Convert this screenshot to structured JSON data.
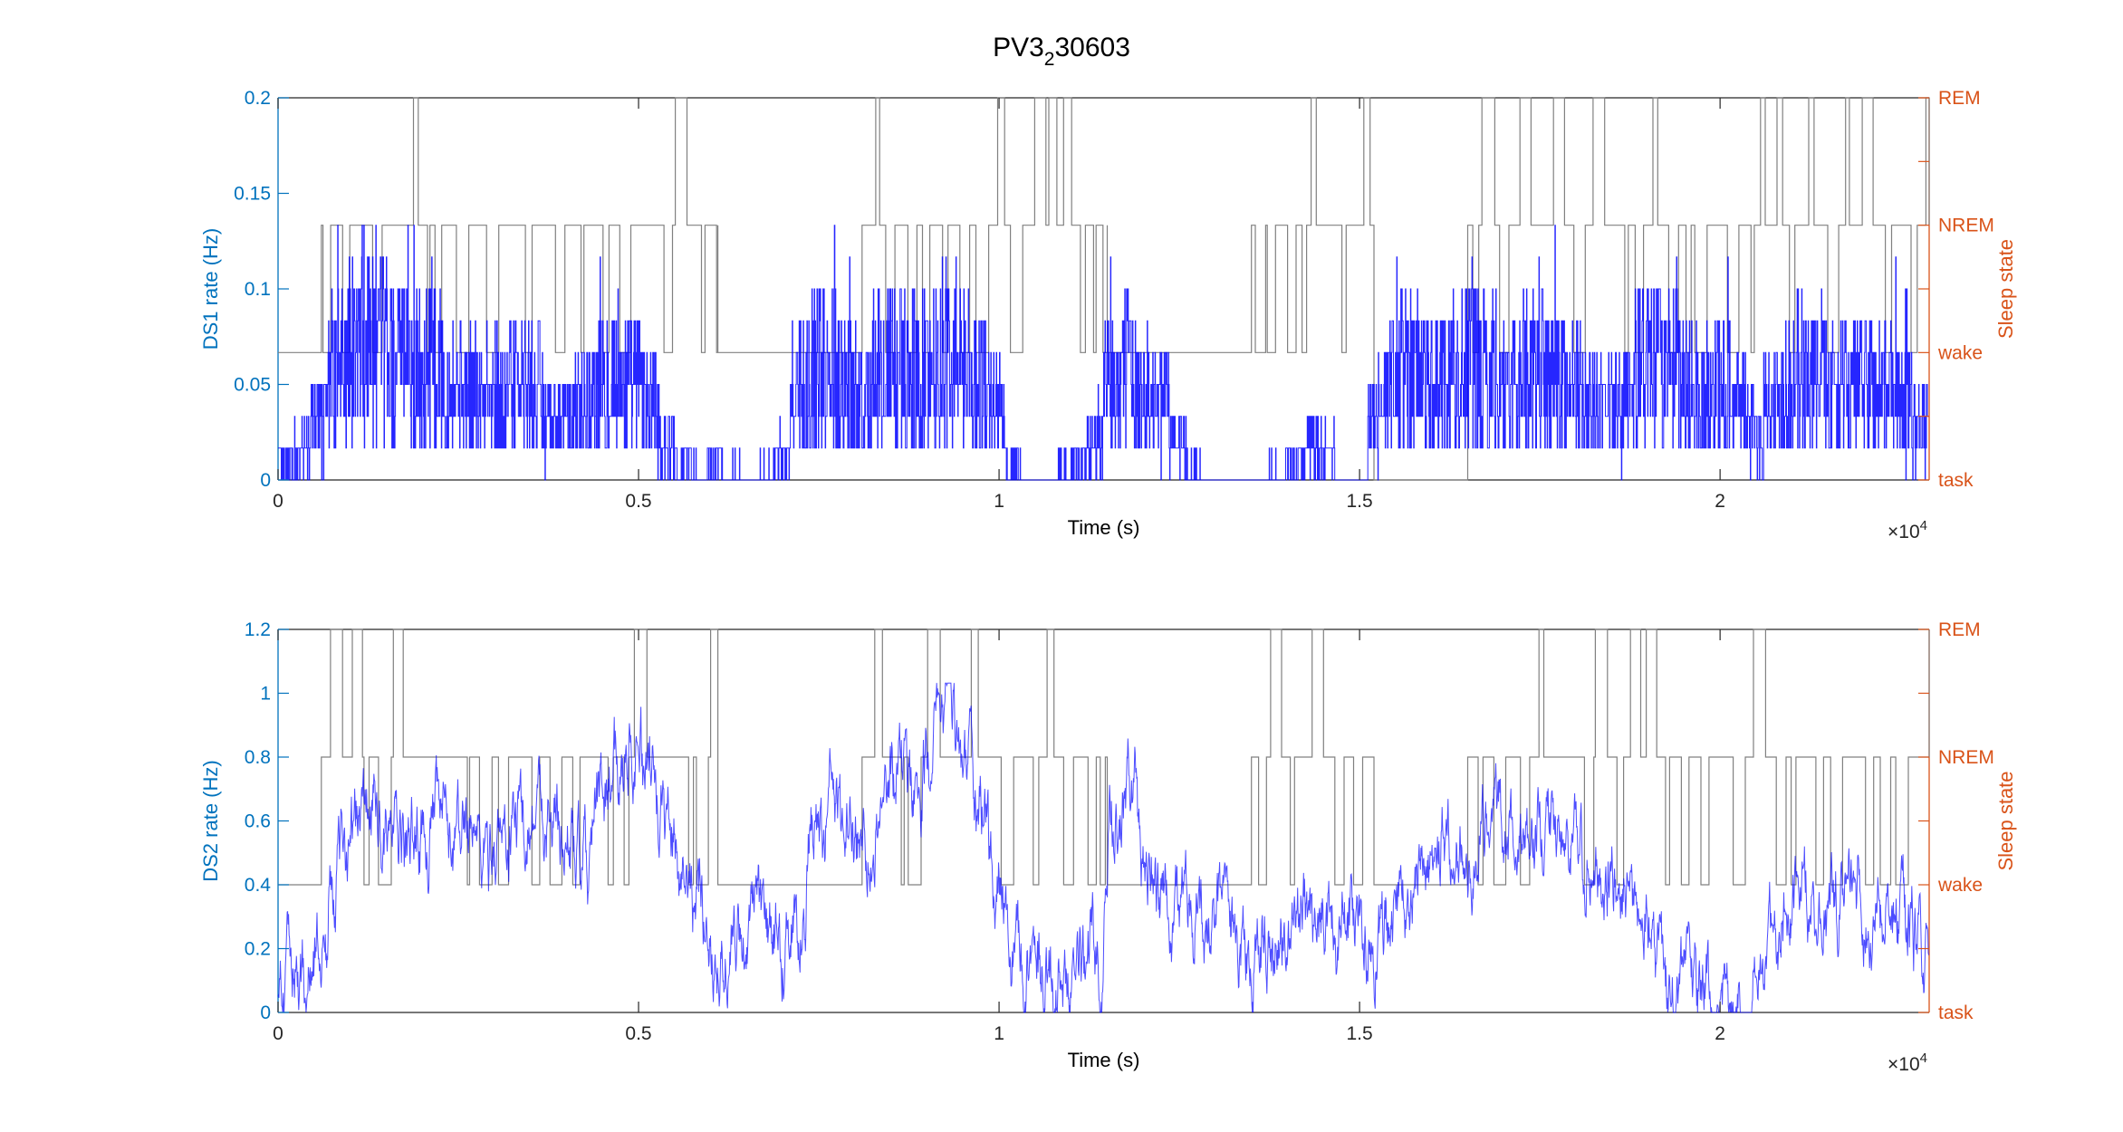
{
  "figure": {
    "title_main": "PV3",
    "title_sub": "2",
    "title_tail": "30603"
  },
  "colors": {
    "left_axis": "#0072BD",
    "right_axis": "#D95319",
    "rate_line": "#0000FF",
    "state_line": "#808080",
    "frame": "#262626"
  },
  "chart_data": [
    {
      "type": "line",
      "xlabel": "Time (s)",
      "x_exponent_base": "×10",
      "x_exponent": "4",
      "xlim": [
        0,
        22900
      ],
      "x_ticks": [
        0,
        5000,
        10000,
        15000,
        20000
      ],
      "x_tick_labels": [
        "0",
        "0.5",
        "1",
        "1.5",
        "2"
      ],
      "ylabel_left": "DS1 rate (Hz)",
      "ylim_left": [
        0,
        0.2
      ],
      "y_ticks_left": [
        0,
        0.05,
        0.1,
        0.15,
        0.2
      ],
      "y_tick_labels_left": [
        "0",
        "0.05",
        "0.1",
        "0.15",
        "0.2"
      ],
      "ylabel_right": "Sleep state",
      "state_labels": [
        "task",
        "wake",
        "NREM",
        "REM"
      ],
      "grid": false,
      "series": [
        {
          "kind": "DS1 rate",
          "axis": "left",
          "mean_hz_per_window": [
            0.01,
            0.015,
            0.03,
            0.055,
            0.065,
            0.07,
            0.065,
            0.06,
            0.055,
            0.06,
            0.05,
            0.045,
            0.04,
            0.045,
            0.05,
            0.045,
            0.035,
            0.03,
            0.04,
            0.05,
            0.055,
            0.05,
            0.04,
            0.02,
            0.01,
            0.005,
            0.008,
            0.005,
            0.003,
            0.005,
            0.012,
            0.045,
            0.06,
            0.06,
            0.05,
            0.04,
            0.055,
            0.06,
            0.055,
            0.06,
            0.065,
            0.055,
            0.05,
            0.04,
            0.008,
            0.003,
            0.003,
            0.005,
            0.01,
            0.02,
            0.05,
            0.055,
            0.045,
            0.04,
            0.02,
            0.005,
            0.0,
            0.0,
            0.0,
            0.003,
            0.005,
            0.01,
            0.02,
            0.015,
            0.0,
            0.0,
            0.03,
            0.045,
            0.06,
            0.055,
            0.05,
            0.055,
            0.06,
            0.055,
            0.05,
            0.055,
            0.055,
            0.05,
            0.045,
            0.04,
            0.035,
            0.04,
            0.06,
            0.06,
            0.055,
            0.05,
            0.045,
            0.05,
            0.04,
            0.025,
            0.04,
            0.05,
            0.055,
            0.05,
            0.045,
            0.05,
            0.05,
            0.045,
            0.04,
            0.03
          ]
        },
        {
          "kind": "sleep state",
          "axis": "right",
          "episodes": [
            {
              "start": 0,
              "end": 600,
              "state": "wake"
            },
            {
              "start": 600,
              "end": 6100,
              "state": "NREM",
              "alternates_with": [
                "wake",
                "REM"
              ]
            },
            {
              "start": 6100,
              "end": 8100,
              "state": "wake"
            },
            {
              "start": 8100,
              "end": 11500,
              "state": "NREM",
              "alternates_with": [
                "wake",
                "REM"
              ]
            },
            {
              "start": 11500,
              "end": 13500,
              "state": "wake"
            },
            {
              "start": 13500,
              "end": 15200,
              "state": "NREM",
              "alternates_with": [
                "wake",
                "REM"
              ]
            },
            {
              "start": 15200,
              "end": 16500,
              "state": "task"
            },
            {
              "start": 16500,
              "end": 22900,
              "state": "NREM",
              "alternates_with": [
                "wake",
                "REM"
              ]
            }
          ]
        }
      ]
    },
    {
      "type": "line",
      "xlabel": "Time (s)",
      "x_exponent_base": "×10",
      "x_exponent": "4",
      "xlim": [
        0,
        22900
      ],
      "x_ticks": [
        0,
        5000,
        10000,
        15000,
        20000
      ],
      "x_tick_labels": [
        "0",
        "0.5",
        "1",
        "1.5",
        "2"
      ],
      "ylabel_left": "DS2 rate (Hz)",
      "ylim_left": [
        0,
        1.2
      ],
      "y_ticks_left": [
        0,
        0.2,
        0.4,
        0.6,
        0.8,
        1.0,
        1.2
      ],
      "y_tick_labels_left": [
        "0",
        "0.2",
        "0.4",
        "0.6",
        "0.8",
        "1",
        "1.2"
      ],
      "ylabel_right": "Sleep state",
      "state_labels": [
        "task",
        "wake",
        "NREM",
        "REM"
      ],
      "grid": false,
      "series": [
        {
          "kind": "DS2 rate",
          "axis": "left",
          "mean_hz_per_window": [
            0.12,
            0.1,
            0.2,
            0.45,
            0.6,
            0.65,
            0.55,
            0.5,
            0.55,
            0.6,
            0.55,
            0.6,
            0.5,
            0.55,
            0.6,
            0.65,
            0.6,
            0.55,
            0.45,
            0.65,
            0.8,
            0.85,
            0.7,
            0.6,
            0.45,
            0.3,
            0.2,
            0.2,
            0.25,
            0.25,
            0.25,
            0.3,
            0.55,
            0.65,
            0.6,
            0.55,
            0.65,
            0.75,
            0.7,
            0.85,
            0.9,
            0.8,
            0.6,
            0.45,
            0.2,
            0.15,
            0.1,
            0.12,
            0.18,
            0.2,
            0.6,
            0.7,
            0.45,
            0.4,
            0.3,
            0.28,
            0.26,
            0.25,
            0.24,
            0.25,
            0.25,
            0.28,
            0.3,
            0.35,
            0.3,
            0.2,
            0.2,
            0.25,
            0.35,
            0.45,
            0.55,
            0.5,
            0.55,
            0.6,
            0.5,
            0.55,
            0.6,
            0.55,
            0.5,
            0.45,
            0.4,
            0.35,
            0.25,
            0.1,
            0.05,
            0.03,
            0.05,
            0.03,
            0.05,
            0.1,
            0.3,
            0.35,
            0.35,
            0.3,
            0.35,
            0.4,
            0.35,
            0.3,
            0.3,
            0.2
          ]
        },
        {
          "kind": "sleep state",
          "axis": "right",
          "episodes": [
            {
              "start": 0,
              "end": 600,
              "state": "wake"
            },
            {
              "start": 600,
              "end": 6100,
              "state": "NREM",
              "alternates_with": [
                "wake",
                "REM"
              ]
            },
            {
              "start": 6100,
              "end": 8100,
              "state": "wake"
            },
            {
              "start": 8100,
              "end": 11500,
              "state": "NREM",
              "alternates_with": [
                "wake",
                "REM"
              ]
            },
            {
              "start": 11500,
              "end": 13500,
              "state": "wake"
            },
            {
              "start": 13500,
              "end": 15200,
              "state": "NREM",
              "alternates_with": [
                "wake",
                "REM"
              ]
            },
            {
              "start": 15200,
              "end": 16500,
              "state": "wake"
            },
            {
              "start": 16500,
              "end": 22900,
              "state": "NREM",
              "alternates_with": [
                "wake",
                "REM"
              ]
            }
          ]
        }
      ]
    }
  ]
}
